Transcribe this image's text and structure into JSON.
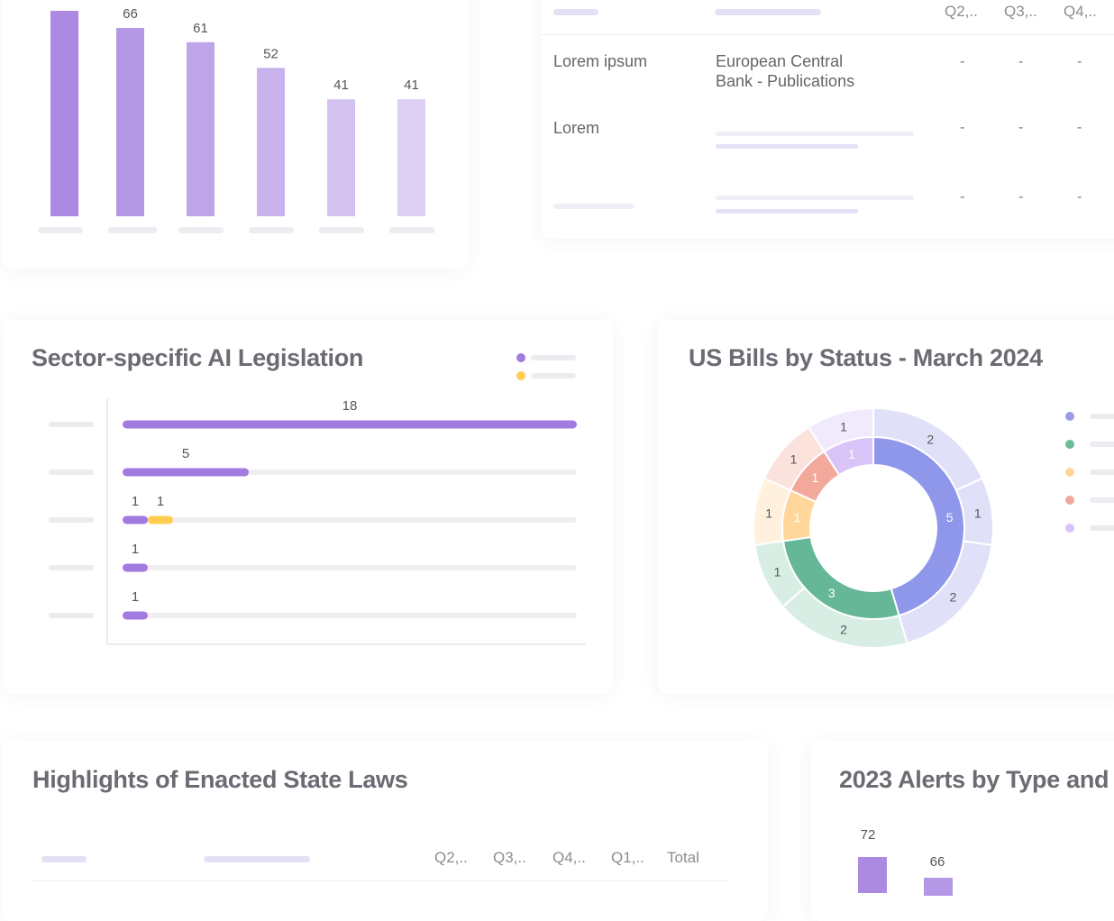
{
  "top_chart": {
    "bars": [
      {
        "value": 72,
        "label": "",
        "color": "#ad8ae2"
      },
      {
        "value": 66,
        "label": "66",
        "color": "#b598e5"
      },
      {
        "value": 61,
        "label": "61",
        "color": "#bea5e8"
      },
      {
        "value": 52,
        "label": "52",
        "color": "#c8b3ec"
      },
      {
        "value": 41,
        "label": "41",
        "color": "#d3c2f0"
      },
      {
        "value": 41,
        "label": "41",
        "color": "#ddd0f3"
      }
    ]
  },
  "top_table": {
    "headers": [
      "Q2,..",
      "Q3,..",
      "Q4,.."
    ],
    "rows": [
      {
        "name": "Lorem ipsum",
        "source": "European Central Bank - Publications",
        "q": [
          "-",
          "-",
          "-"
        ]
      },
      {
        "name": "Lorem",
        "source": "",
        "q": [
          "-",
          "-",
          "-"
        ]
      },
      {
        "name": "",
        "source": "",
        "q": [
          "-",
          "-",
          "-"
        ]
      }
    ]
  },
  "sector_chart": {
    "title": "Sector-specific AI Legislation",
    "legend_colors": [
      "#a37ae0",
      "#ffcd4f"
    ],
    "rows": [
      {
        "segments": [
          18
        ],
        "labels": [
          "18"
        ]
      },
      {
        "segments": [
          5
        ],
        "labels": [
          "5"
        ]
      },
      {
        "segments": [
          1,
          1
        ],
        "labels": [
          "1",
          "1"
        ]
      },
      {
        "segments": [
          1
        ],
        "labels": [
          "1"
        ]
      },
      {
        "segments": [
          1
        ],
        "labels": [
          "1"
        ]
      }
    ]
  },
  "bills_chart": {
    "title": "US Bills by Status - March 2024",
    "legend_colors": [
      "#9a9ae9",
      "#6abb98",
      "#ffd79a",
      "#f2a99c",
      "#d9c4f7"
    ]
  },
  "chart_data": [
    {
      "type": "bar",
      "title": "",
      "categories": [
        "",
        "",
        "",
        "",
        "",
        ""
      ],
      "values": [
        72,
        66,
        61,
        52,
        41,
        41
      ],
      "ylim": [
        0,
        72
      ]
    },
    {
      "type": "bar",
      "title": "Sector-specific AI Legislation",
      "categories": [
        "",
        "",
        "",
        "",
        ""
      ],
      "series": [
        {
          "values": [
            18,
            5,
            1,
            1,
            1
          ]
        },
        {
          "values": [
            0,
            0,
            1,
            0,
            0
          ]
        }
      ],
      "xlim": [
        0,
        18
      ],
      "orientation": "horizontal"
    },
    {
      "type": "pie",
      "title": "US Bills by Status - March 2024",
      "inner": [
        {
          "value": 5,
          "label": "5",
          "color": "#8f97ea"
        },
        {
          "value": 3,
          "label": "3",
          "color": "#66b797"
        },
        {
          "value": 1,
          "label": "1",
          "color": "#ffd79a"
        },
        {
          "value": 1,
          "label": "1",
          "color": "#f2a99c"
        },
        {
          "value": 1,
          "label": "1",
          "color": "#d9c4f7"
        }
      ],
      "outer": [
        {
          "value": 2,
          "label": "2",
          "color": "#e0e1f9"
        },
        {
          "value": 1,
          "label": "1",
          "color": "#e0e1f9"
        },
        {
          "value": 2,
          "label": "2",
          "color": "#e0e1f9"
        },
        {
          "value": 2,
          "label": "2",
          "color": "#d8eee4"
        },
        {
          "value": 1,
          "label": "1",
          "color": "#d8eee4"
        },
        {
          "value": 1,
          "label": "1",
          "color": "#fff1dd"
        },
        {
          "value": 1,
          "label": "1",
          "color": "#fbe2dc"
        },
        {
          "value": 1,
          "label": "1",
          "color": "#f1eafd"
        }
      ]
    },
    {
      "type": "bar",
      "title": "2023 Alerts by Type and",
      "categories": [
        "",
        ""
      ],
      "values": [
        72,
        66
      ]
    }
  ],
  "laws_table": {
    "title": "Highlights of Enacted State Laws",
    "headers": [
      "Q2,..",
      "Q3,..",
      "Q4,..",
      "Q1,..",
      "Total"
    ]
  },
  "alerts_chart": {
    "title": "2023 Alerts by Type and",
    "labels": [
      "72",
      "66"
    ]
  }
}
